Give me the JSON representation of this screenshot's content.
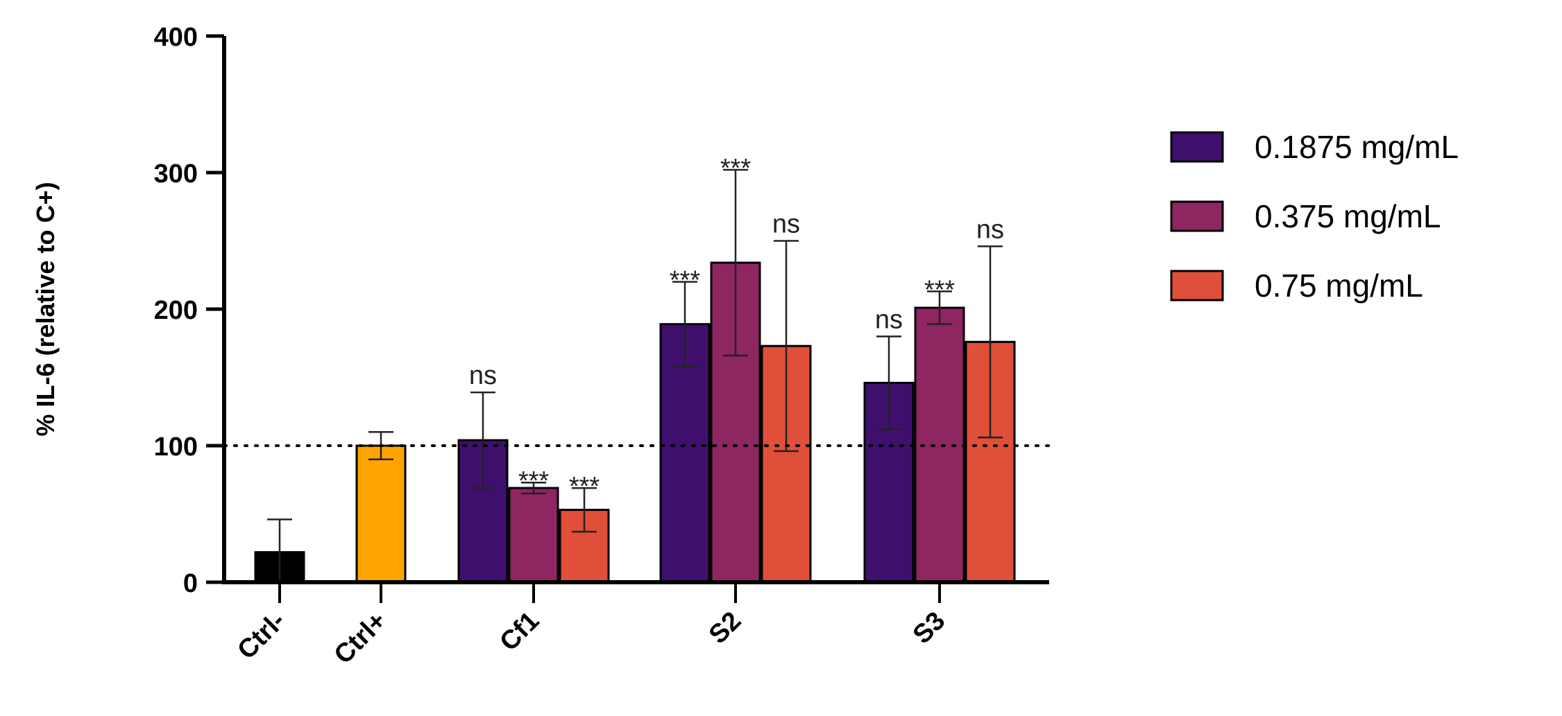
{
  "chart_data": {
    "type": "bar",
    "ylabel": "% IL-6  (relative to C+)",
    "xlabel": "",
    "title": "",
    "ylim": [
      0,
      400
    ],
    "yticks": [
      0,
      100,
      200,
      300,
      400
    ],
    "reference_line": 100,
    "legend_position": "right",
    "colors": {
      "ctrl_neg": "#000000",
      "ctrl_pos": "#ffa400",
      "c1": "#3f0f6e",
      "c2": "#8e2662",
      "c3": "#e04f3a"
    },
    "legend": [
      {
        "label": "0.1875 mg/mL",
        "color": "#3f0f6e"
      },
      {
        "label": "0.375 mg/mL",
        "color": "#8e2662"
      },
      {
        "label": "0.75 mg/mL",
        "color": "#e04f3a"
      }
    ],
    "groups": [
      {
        "label": "Ctrl-",
        "bars": [
          {
            "value": 22,
            "err": 24,
            "color": "#000000",
            "annot": ""
          }
        ]
      },
      {
        "label": "Ctrl+",
        "bars": [
          {
            "value": 100,
            "err": 10,
            "color": "#ffa400",
            "annot": ""
          }
        ]
      },
      {
        "label": "Cf1",
        "bars": [
          {
            "value": 104,
            "err": 35,
            "color": "#3f0f6e",
            "annot": "ns"
          },
          {
            "value": 69,
            "err": 4,
            "color": "#8e2662",
            "annot": "***"
          },
          {
            "value": 53,
            "err": 16,
            "color": "#e04f3a",
            "annot": "***"
          }
        ]
      },
      {
        "label": "S2",
        "bars": [
          {
            "value": 189,
            "err": 31,
            "color": "#3f0f6e",
            "annot": "***"
          },
          {
            "value": 234,
            "err": 68,
            "color": "#8e2662",
            "annot": "***"
          },
          {
            "value": 173,
            "err": 77,
            "color": "#e04f3a",
            "annot": "ns"
          }
        ]
      },
      {
        "label": "S3",
        "bars": [
          {
            "value": 146,
            "err": 34,
            "color": "#3f0f6e",
            "annot": "ns"
          },
          {
            "value": 201,
            "err": 12,
            "color": "#8e2662",
            "annot": "***"
          },
          {
            "value": 176,
            "err": 70,
            "color": "#e04f3a",
            "annot": "ns"
          }
        ]
      }
    ]
  }
}
